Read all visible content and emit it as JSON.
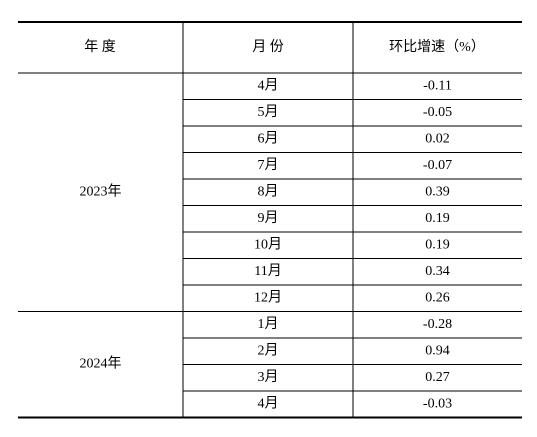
{
  "table": {
    "header": [
      "年 度",
      "月 份",
      "环比增速（%）"
    ],
    "groups": [
      {
        "year": "2023年",
        "rows": [
          [
            "4月",
            "-0.11"
          ],
          [
            "5月",
            "-0.05"
          ],
          [
            "6月",
            "0.02"
          ],
          [
            "7月",
            "-0.07"
          ],
          [
            "8月",
            "0.39"
          ],
          [
            "9月",
            "0.19"
          ],
          [
            "10月",
            "0.19"
          ],
          [
            "11月",
            "0.34"
          ],
          [
            "12月",
            "0.26"
          ]
        ]
      },
      {
        "year": "2024年",
        "rows": [
          [
            "1月",
            "-0.28"
          ],
          [
            "2月",
            "0.94"
          ],
          [
            "3月",
            "0.27"
          ],
          [
            "4月",
            "-0.03"
          ]
        ]
      }
    ]
  }
}
